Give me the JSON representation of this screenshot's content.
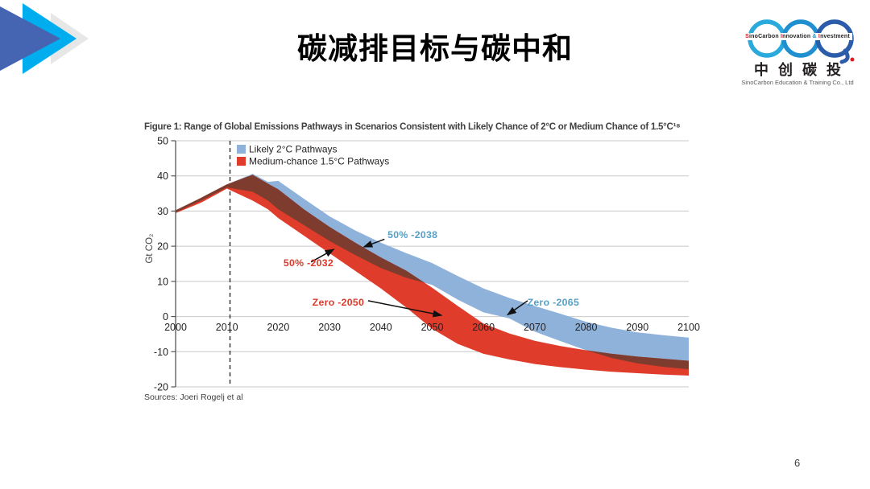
{
  "slide": {
    "title": "碳减排目标与碳中和",
    "page_number": "6"
  },
  "decor": {
    "arrow_colors": [
      "#4565b2",
      "#00aeef",
      "#e7e7e7"
    ]
  },
  "logo": {
    "banner_parts": [
      {
        "text": "S",
        "color": "#e01b22"
      },
      {
        "text": "inoCarbon ",
        "color": "#231f20"
      },
      {
        "text": "I",
        "color": "#e01b22"
      },
      {
        "text": "nnovation ",
        "color": "#231f20"
      },
      {
        "text": "&",
        "color": "#1f8fd0"
      },
      {
        "text": " ",
        "color": "#231f20"
      },
      {
        "text": "I",
        "color": "#e01b22"
      },
      {
        "text": "nvestment",
        "color": "#231f20"
      }
    ],
    "cn_name": "中创碳投",
    "subtitle": "SinoCarbon Education & Training Co., Ltd",
    "ring_color_1": "#2aa9dc",
    "ring_color_2": "#1f8fd0",
    "ring_color_3": "#2a5caa",
    "dot_color": "#e01b22"
  },
  "chart_data": {
    "type": "area",
    "title": "Figure 1: Range of Global Emissions Pathways in Scenarios Consistent with Likely Chance of 2°C or Medium Chance of 1.5°C¹⁸",
    "ylabel": "Gt CO₂",
    "source": "Sources: Joeri Rogelj et al",
    "xlim": [
      2000,
      2100
    ],
    "ylim": [
      -20,
      50
    ],
    "x_ticks": [
      2000,
      2010,
      2020,
      2030,
      2040,
      2050,
      2060,
      2070,
      2080,
      2090,
      2100
    ],
    "y_ticks": [
      50,
      40,
      30,
      20,
      10,
      0,
      -10,
      -20
    ],
    "grid_color": "#c9c9c9",
    "axis_color": "#55565a",
    "dashed_line_year": 2010.6,
    "overlap_color": "#7d3c2d",
    "years": [
      2000,
      2005,
      2010,
      2015,
      2018,
      2020,
      2025,
      2030,
      2035,
      2040,
      2045,
      2050,
      2055,
      2060,
      2065,
      2070,
      2075,
      2080,
      2085,
      2090,
      2095,
      2100
    ],
    "series": [
      {
        "name": "Likely 2°C Pathways",
        "color": "#8fb2db",
        "top": [
          30.2,
          33.8,
          37.6,
          40.6,
          38.3,
          38.6,
          33.5,
          28.5,
          24.5,
          21.0,
          18.0,
          15.2,
          11.5,
          8.0,
          5.3,
          3.0,
          0.8,
          -1.5,
          -3.2,
          -4.5,
          -5.3,
          -6.0
        ],
        "bottom": [
          29.6,
          33.0,
          36.7,
          35.5,
          33.0,
          30.5,
          26.0,
          21.5,
          17.5,
          13.8,
          11.0,
          9.0,
          4.8,
          1.2,
          -0.5,
          -4.3,
          -7.0,
          -9.6,
          -11.8,
          -13.3,
          -14.3,
          -15.0
        ]
      },
      {
        "name": "Medium-chance 1.5°C Pathways",
        "color": "#e03c2c",
        "top": [
          30.2,
          33.8,
          37.6,
          40.3,
          37.8,
          36.2,
          30.5,
          25.5,
          21.0,
          16.8,
          13.0,
          8.2,
          3.0,
          -2.0,
          -4.8,
          -6.9,
          -8.4,
          -9.6,
          -10.6,
          -11.4,
          -12.0,
          -12.6
        ],
        "bottom": [
          29.4,
          32.4,
          36.4,
          33.0,
          30.5,
          28.0,
          23.0,
          18.0,
          13.0,
          8.0,
          2.5,
          -3.5,
          -7.8,
          -10.6,
          -12.2,
          -13.5,
          -14.4,
          -15.1,
          -15.7,
          -16.1,
          -16.5,
          -16.8
        ]
      }
    ],
    "annotations": [
      {
        "label": "50% -2038",
        "color": "#55a0c6",
        "text_x": 2041.3,
        "text_y": 23.2,
        "anchor": "start",
        "arrow_from": [
          2040.7,
          22.0
        ],
        "arrow_to": [
          2036.7,
          19.8
        ]
      },
      {
        "label": "50% -2032",
        "color": "#d93a2a",
        "text_x": 2025.9,
        "text_y": 15.2,
        "anchor": "middle",
        "arrow_from": [
          2026.4,
          15.5
        ],
        "arrow_to": [
          2030.8,
          19.1
        ]
      },
      {
        "label": "Zero -2050",
        "color": "#d93a2a",
        "text_x": 2031.7,
        "text_y": 4.0,
        "anchor": "middle",
        "arrow_from": [
          2037.5,
          4.5
        ],
        "arrow_to": [
          2051.8,
          0.35
        ]
      },
      {
        "label": "Zero -2065",
        "color": "#55a0c6",
        "text_x": 2073.6,
        "text_y": 4.0,
        "anchor": "middle",
        "arrow_from": [
          2068.6,
          4.5
        ],
        "arrow_to": [
          2064.7,
          0.5
        ]
      }
    ]
  }
}
